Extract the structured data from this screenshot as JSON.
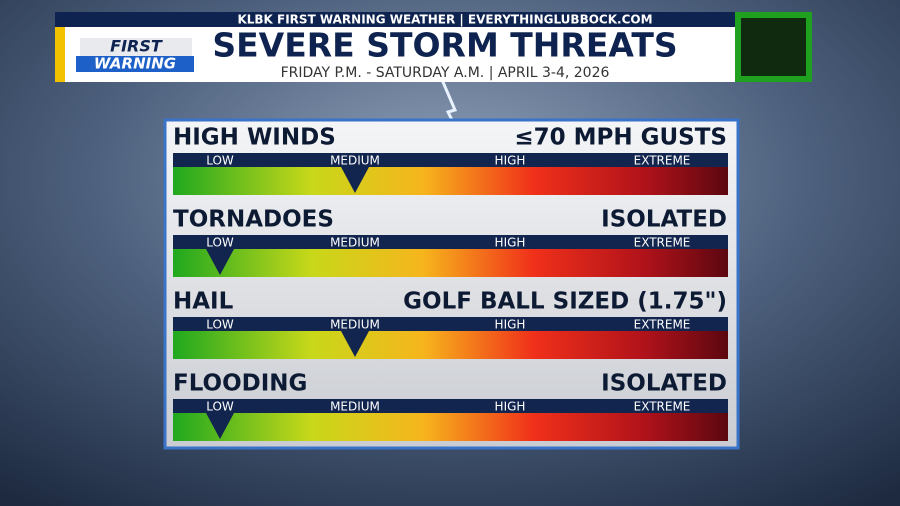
{
  "header": {
    "banner": "KLBK FIRST WARNING WEATHER | EVERYTHINGLUBBOCK.COM",
    "title": "SEVERE STORM THREATS",
    "subtitle": "FRIDAY P.M. - SATURDAY A.M. | APRIL 3-4, 2026",
    "logo_top": "FIRST",
    "logo_bottom": "WARNING"
  },
  "scale": [
    "LOW",
    "MEDIUM",
    "HIGH",
    "EXTREME"
  ],
  "threats": [
    {
      "name": "HIGH WINDS",
      "detail": "≤70 MPH GUSTS",
      "level": 1
    },
    {
      "name": "TORNADOES",
      "detail": "ISOLATED",
      "level": 0
    },
    {
      "name": "HAIL",
      "detail": "GOLF BALL SIZED (1.75\")",
      "level": 1
    },
    {
      "name": "FLOODING",
      "detail": "ISOLATED",
      "level": 0
    }
  ]
}
